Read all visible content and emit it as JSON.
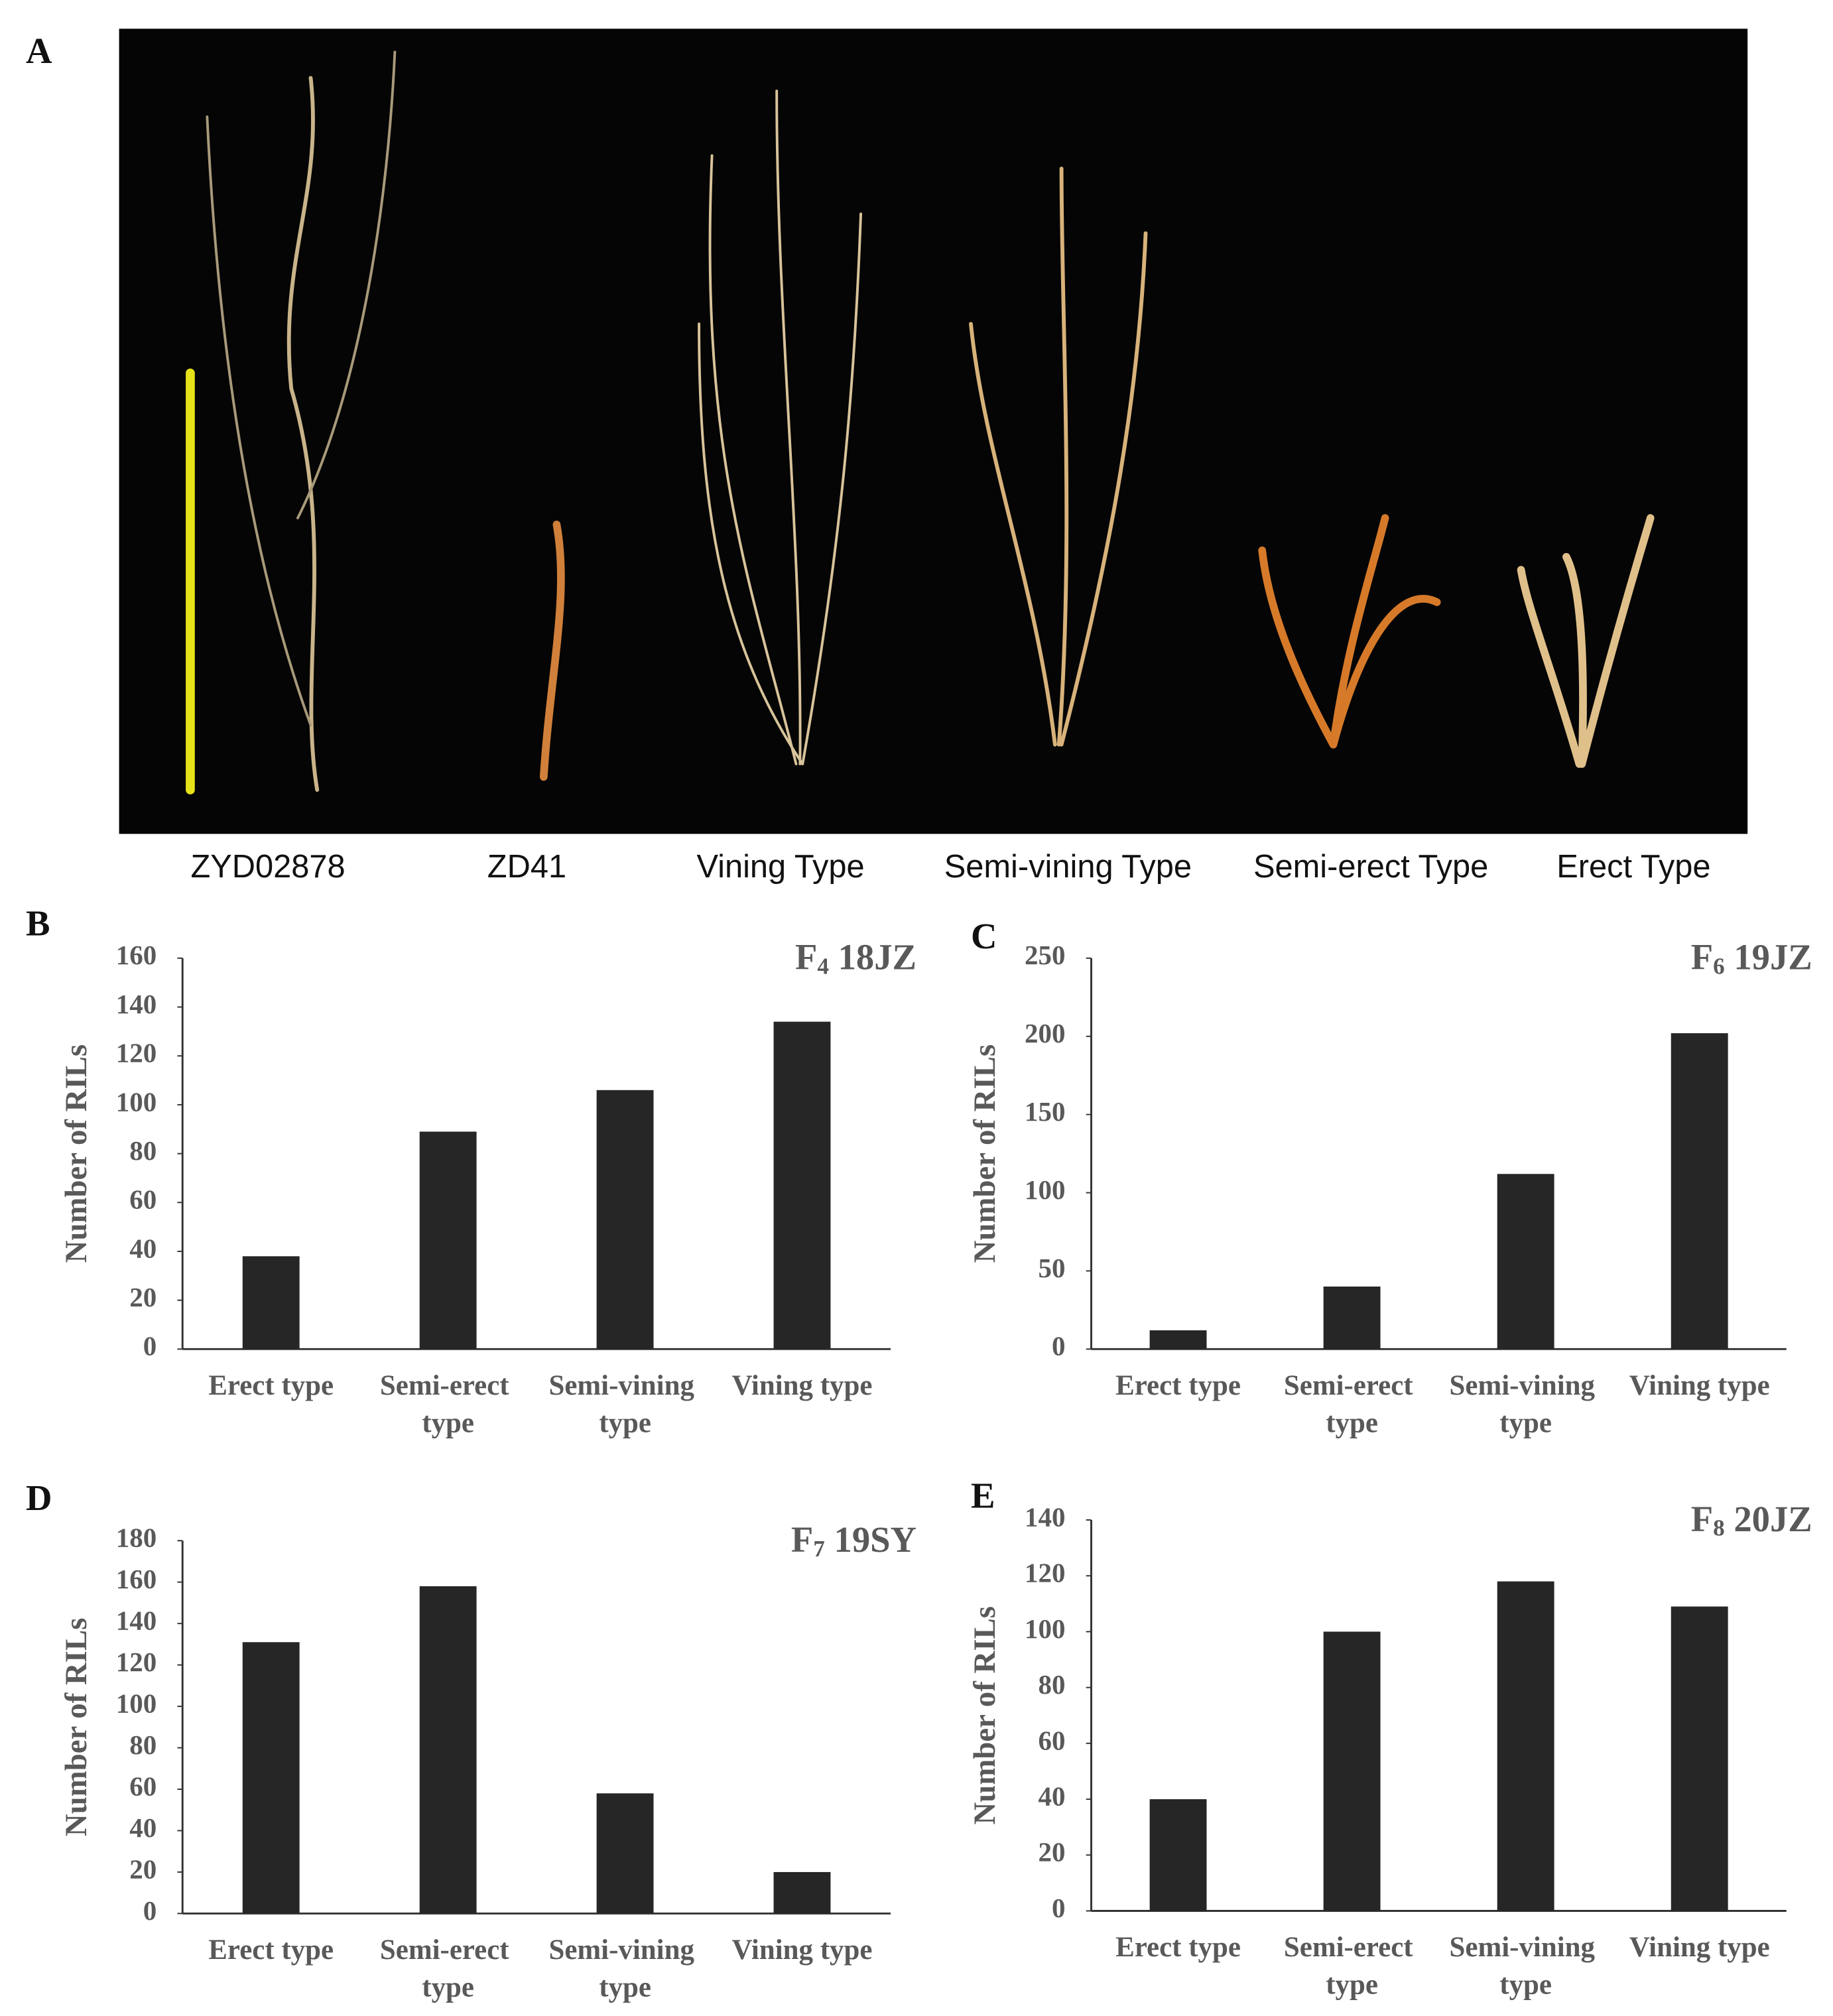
{
  "panel_a": {
    "label": "A",
    "captions": [
      "ZYD02878",
      "ZD41",
      "Vining  Type",
      "Semi-vining  Type",
      "Semi-erect Type",
      "Erect Type"
    ]
  },
  "chart_data": [
    {
      "type": "bar",
      "panel_label": "B",
      "title": "F4 18JZ",
      "y_label": "Number of RILs",
      "categories": [
        "Erect type",
        "Semi-erect type",
        "Semi-vining type",
        "Vining type"
      ],
      "values": [
        38,
        89,
        106,
        134
      ],
      "color": "#262626",
      "ylim": [
        0,
        160
      ],
      "yticks": [
        0,
        20,
        40,
        60,
        80,
        100,
        120,
        140,
        160
      ]
    },
    {
      "type": "bar",
      "panel_label": "C",
      "title": "F6 19JZ",
      "y_label": "Number of RILs",
      "categories": [
        "Erect type",
        "Semi-erect type",
        "Semi-vining type",
        "Vining type"
      ],
      "values": [
        12,
        40,
        112,
        202
      ],
      "color": "#262626",
      "ylim": [
        0,
        250
      ],
      "yticks": [
        0,
        50,
        100,
        150,
        200,
        250
      ]
    },
    {
      "type": "bar",
      "panel_label": "D",
      "title": "F7 19SY",
      "y_label": "Number of RILs",
      "categories": [
        "Erect type",
        "Semi-erect type",
        "Semi-vining type",
        "Vining type"
      ],
      "values": [
        131,
        158,
        58,
        20
      ],
      "color": "#262626",
      "ylim": [
        0,
        180
      ],
      "yticks": [
        0,
        20,
        40,
        60,
        80,
        100,
        120,
        140,
        160,
        180
      ]
    },
    {
      "type": "bar",
      "panel_label": "E",
      "title": "F8 20JZ",
      "y_label": "Number of RILs",
      "categories": [
        "Erect type",
        "Semi-erect type",
        "Semi-vining type",
        "Vining type"
      ],
      "values": [
        40,
        100,
        118,
        109
      ],
      "color": "#262626",
      "ylim": [
        0,
        140
      ],
      "yticks": [
        0,
        20,
        40,
        60,
        80,
        100,
        120,
        140
      ]
    }
  ]
}
